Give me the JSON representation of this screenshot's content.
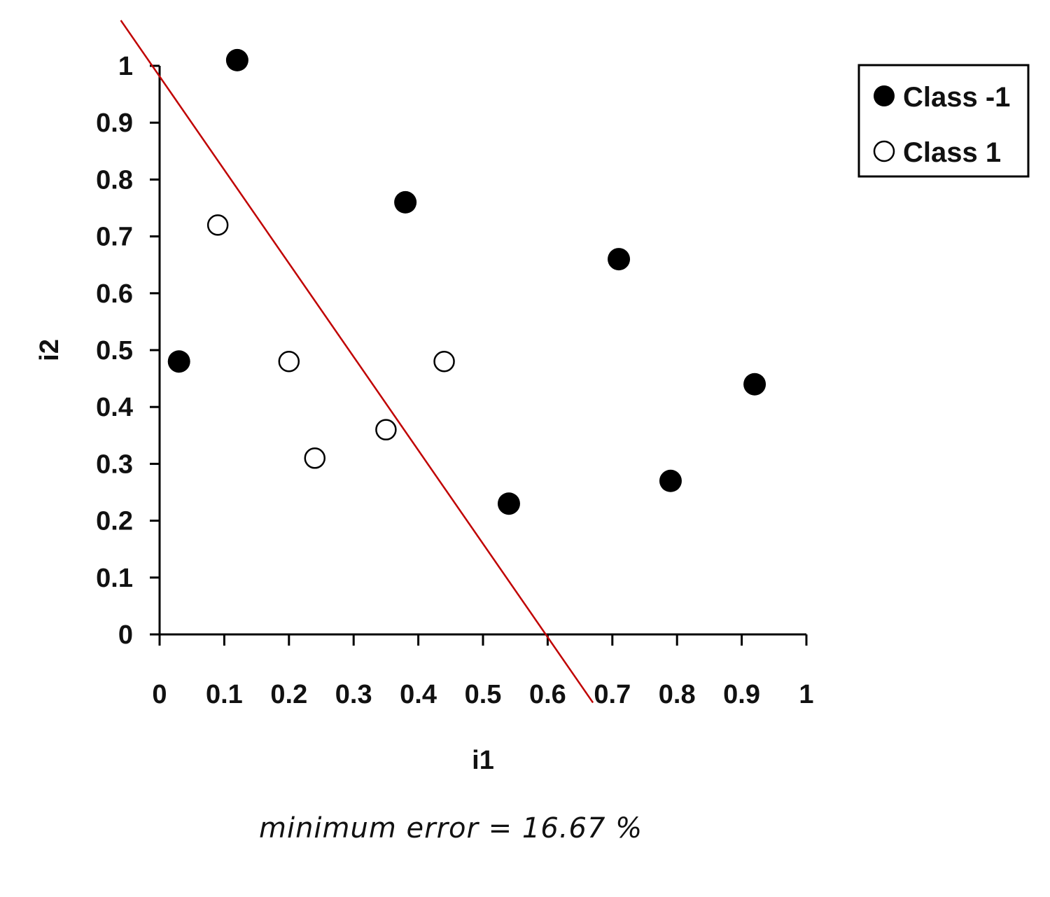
{
  "chart_data": {
    "type": "scatter",
    "xlabel": "i1",
    "ylabel": "i2",
    "xlim": [
      0,
      1
    ],
    "ylim": [
      0,
      1
    ],
    "x_ticks": [
      "0",
      "0.1",
      "0.2",
      "0.3",
      "0.4",
      "0.5",
      "0.6",
      "0.7",
      "0.8",
      "0.9",
      "1"
    ],
    "y_ticks": [
      "0",
      "0.1",
      "0.2",
      "0.3",
      "0.4",
      "0.5",
      "0.6",
      "0.7",
      "0.8",
      "0.9",
      "1"
    ],
    "grid": false,
    "legend_position": "top-right",
    "series": [
      {
        "name": "Class -1",
        "marker": "filled-circle",
        "color": "#000000",
        "points": [
          {
            "x": 0.03,
            "y": 0.48
          },
          {
            "x": 0.12,
            "y": 1.01
          },
          {
            "x": 0.38,
            "y": 0.76
          },
          {
            "x": 0.54,
            "y": 0.23
          },
          {
            "x": 0.71,
            "y": 0.66
          },
          {
            "x": 0.79,
            "y": 0.27
          },
          {
            "x": 0.92,
            "y": 0.44
          }
        ]
      },
      {
        "name": "Class 1",
        "marker": "open-circle",
        "color": "#000000",
        "points": [
          {
            "x": 0.09,
            "y": 0.72
          },
          {
            "x": 0.2,
            "y": 0.48
          },
          {
            "x": 0.24,
            "y": 0.31
          },
          {
            "x": 0.35,
            "y": 0.36
          },
          {
            "x": 0.44,
            "y": 0.48
          }
        ]
      }
    ],
    "decision_line": {
      "color": "#c00000",
      "points": [
        {
          "x": -0.06,
          "y": 1.08
        },
        {
          "x": 0.67,
          "y": -0.12
        }
      ]
    }
  },
  "annotation": "minimum error  =  16.67 %"
}
